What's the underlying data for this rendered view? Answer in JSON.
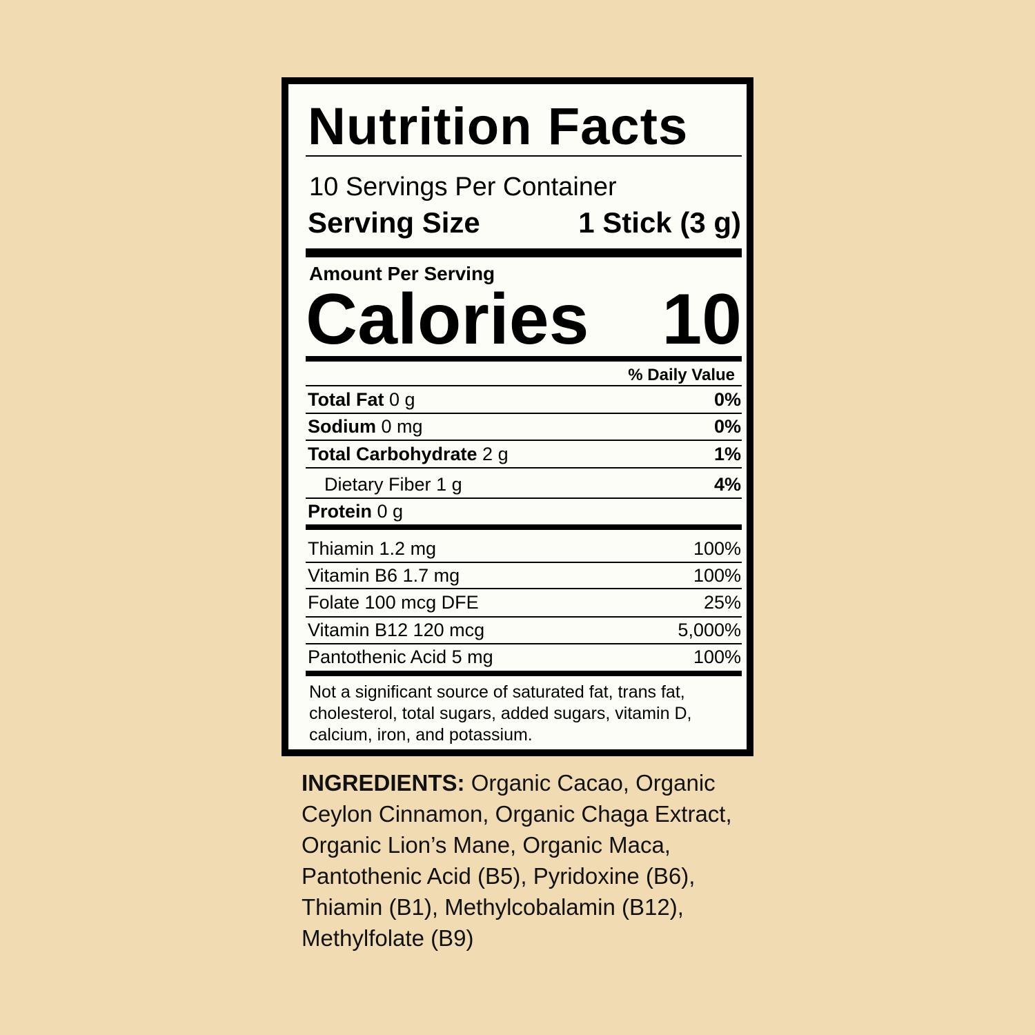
{
  "title": "Nutrition Facts",
  "servings_per_container": "10 Servings Per Container",
  "serving_size": {
    "label": "Serving Size",
    "value": "1 Stick (3 g)"
  },
  "amount_per_serving": "Amount Per Serving",
  "calories": {
    "label": "Calories",
    "value": "10"
  },
  "daily_value_header": "% Daily Value",
  "nutrients": [
    {
      "name": "Total Fat",
      "amount": "0 g",
      "dv": "0%"
    },
    {
      "name": "Sodium",
      "amount": "0 mg",
      "dv": "0%"
    },
    {
      "name": "Total Carbohydrate",
      "amount": "2 g",
      "dv": "1%"
    },
    {
      "name": "Dietary Fiber",
      "amount": "1 g",
      "dv": "4%"
    },
    {
      "name": "Protein",
      "amount": "0 g",
      "dv": ""
    }
  ],
  "vitamins": [
    {
      "name": "Thiamin 1.2 mg",
      "dv": "100%"
    },
    {
      "name": "Vitamin B6 1.7 mg",
      "dv": "100%"
    },
    {
      "name": "Folate 100 mcg DFE",
      "dv": "25%"
    },
    {
      "name": "Vitamin B12 120 mcg",
      "dv": "5,000%"
    },
    {
      "name": "Pantothenic Acid 5 mg",
      "dv": "100%"
    }
  ],
  "footnote": "Not a significant source of saturated fat, trans fat, cholesterol, total sugars, added sugars, vitamin D, calcium, iron, and potassium.",
  "ingredients": {
    "label": "INGREDIENTS:",
    "text": "Organic Cacao, Organic Ceylon Cinnamon, Organic Chaga Extract, Organic Lion’s Mane, Organic Maca, Pantothenic Acid (B5), Pyridoxine (B6), Thiamin (B1), Methylcobalamin (B12), Methylfolate (B9)"
  }
}
